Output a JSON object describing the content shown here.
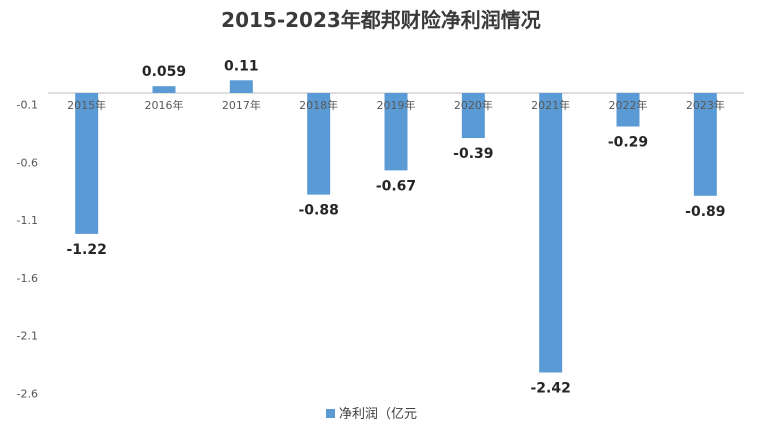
{
  "chart_data": {
    "type": "bar",
    "title": "2015-2023年都邦财险净利润情况",
    "categories": [
      "2015年",
      "2016年",
      "2017年",
      "2018年",
      "2019年",
      "2020年",
      "2021年",
      "2022年",
      "2023年"
    ],
    "series": [
      {
        "name": "净利润（亿元",
        "values": [
          -1.22,
          0.059,
          0.11,
          -0.88,
          -0.67,
          -0.39,
          -2.42,
          -0.29,
          -0.89
        ],
        "labels": [
          "-1.22",
          "0.059",
          "0.11",
          "-0.88",
          "-0.67",
          "-0.39",
          "-2.42",
          "-0.29",
          "-0.89"
        ]
      }
    ],
    "yticks": [
      "-0.1",
      "-0.6",
      "-1.1",
      "-1.6",
      "-2.1",
      "-2.6"
    ],
    "ylim": [
      -2.6,
      0.15
    ],
    "color": "#5b9bd5",
    "grid": false,
    "legend": "bottom"
  }
}
